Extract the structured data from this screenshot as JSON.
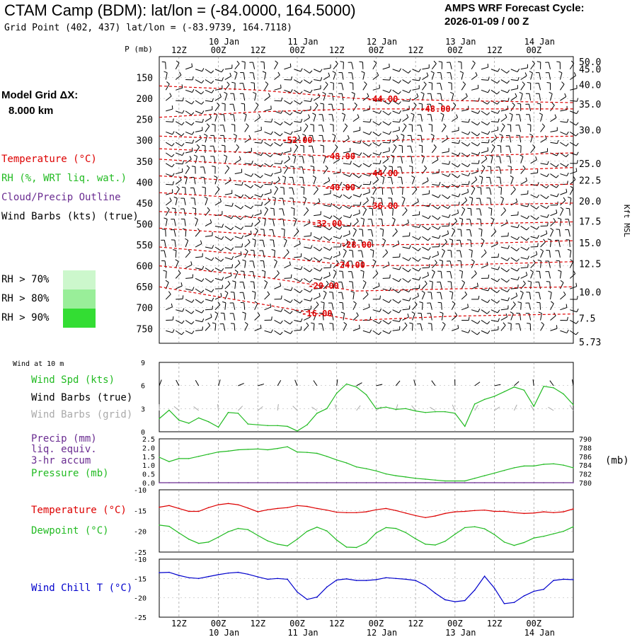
{
  "header": {
    "title": "CTAM Camp (BDM):  lat/lon = (-84.0000, 164.5000)",
    "grid_point": "Grid Point (402, 437) lat/lon = (-83.9739, 164.7118)",
    "cycle_label": "AMPS WRF Forecast Cycle:",
    "cycle_value": "2026-01-09 / 00  Z"
  },
  "model_grid": {
    "label": "Model Grid ΔX:",
    "value": "8.000 km"
  },
  "legend": {
    "temperature": "Temperature (°C)",
    "rh": "RH (%, WRT liq. wat.)",
    "cloud": "Cloud/Precip Outline",
    "wind_barbs": "Wind Barbs (kts) (true)",
    "rh70": "RH > 70%",
    "rh80": "RH > 80%",
    "rh90": "RH > 90%",
    "rh_colors": [
      "#ccf7cc",
      "#99ee99",
      "#33dd33"
    ]
  },
  "time_axis": {
    "labels_top": [
      "12Z",
      "00Z",
      "12Z",
      "00Z",
      "12Z",
      "00Z",
      "12Z",
      "00Z",
      "12Z",
      "00Z"
    ],
    "dates": [
      "10 Jan",
      "11 Jan",
      "12 Jan",
      "13 Jan",
      "14 Jan"
    ]
  },
  "colors": {
    "temp": "#dd0000",
    "green": "#22bb22",
    "blue": "#0000cc",
    "gray": "#aaaaaa",
    "purple": "#6a2c91"
  },
  "chart_data": [
    {
      "type": "line",
      "name": "upper-air cross-section",
      "y_label": "P (mb)",
      "y_right_label": "Kft MSL",
      "pressure_ticks": [
        150,
        200,
        250,
        300,
        350,
        400,
        450,
        500,
        550,
        600,
        650,
        700,
        750
      ],
      "kft_ticks": [
        "50.0",
        "45.0",
        "40.0",
        "35.0",
        "30.0",
        "25.0",
        "22.5",
        "20.0",
        "17.5",
        "15.0",
        "12.5",
        "10.0",
        "7.5",
        "5.73"
      ],
      "kft_pressures": [
        112,
        130,
        167,
        213,
        275,
        355,
        395,
        445,
        493,
        545,
        595,
        662,
        725,
        782
      ],
      "ylim": [
        100,
        785
      ],
      "forecast_hours": [
        0,
        126
      ],
      "isotherms": [
        {
          "label": "-44.00",
          "label_hour": 68,
          "points": [
            [
              0,
              170
            ],
            [
              30,
              180
            ],
            [
              60,
              200
            ],
            [
              90,
              205
            ],
            [
              126,
              210
            ]
          ]
        },
        {
          "label": "-48.00",
          "label_hour": 84,
          "points": [
            [
              0,
              245
            ],
            [
              30,
              232
            ],
            [
              60,
              225
            ],
            [
              90,
              225
            ],
            [
              126,
              225
            ]
          ]
        },
        {
          "label": "-52.00",
          "label_hour": 42,
          "points": [
            [
              0,
              290
            ],
            [
              30,
              298
            ],
            [
              60,
              303
            ],
            [
              90,
              295
            ],
            [
              126,
              290
            ]
          ]
        },
        {
          "label": "-48.00",
          "label_hour": 55,
          "points": [
            [
              0,
              320
            ],
            [
              30,
              330
            ],
            [
              60,
              340
            ],
            [
              90,
              338
            ],
            [
              126,
              330
            ]
          ]
        },
        {
          "label": "-44.00",
          "label_hour": 68,
          "points": [
            [
              0,
              345
            ],
            [
              30,
              360
            ],
            [
              60,
              380
            ],
            [
              90,
              375
            ],
            [
              126,
              365
            ]
          ]
        },
        {
          "label": "-40.00",
          "label_hour": 55,
          "points": [
            [
              0,
              385
            ],
            [
              30,
              400
            ],
            [
              60,
              415
            ],
            [
              90,
              410
            ],
            [
              126,
              405
            ]
          ]
        },
        {
          "label": "-36.00",
          "label_hour": 68,
          "points": [
            [
              0,
              425
            ],
            [
              30,
              440
            ],
            [
              60,
              458
            ],
            [
              90,
              455
            ],
            [
              126,
              450
            ]
          ]
        },
        {
          "label": "-32.00",
          "label_hour": 51,
          "points": [
            [
              0,
              470
            ],
            [
              30,
              485
            ],
            [
              60,
              505
            ],
            [
              90,
              500
            ],
            [
              126,
              495
            ]
          ]
        },
        {
          "label": "-28.00",
          "label_hour": 60,
          "points": [
            [
              0,
              510
            ],
            [
              30,
              525
            ],
            [
              60,
              550
            ],
            [
              90,
              548
            ],
            [
              126,
              540
            ]
          ]
        },
        {
          "label": "-24.00",
          "label_hour": 58,
          "points": [
            [
              0,
              555
            ],
            [
              30,
              575
            ],
            [
              60,
              600
            ],
            [
              90,
              598
            ],
            [
              126,
              590
            ]
          ]
        },
        {
          "label": "-20.00",
          "label_hour": 50,
          "points": [
            [
              0,
              600
            ],
            [
              30,
              625
            ],
            [
              60,
              660
            ],
            [
              90,
              655
            ],
            [
              126,
              650
            ]
          ]
        },
        {
          "label": "-16.00",
          "label_hour": 48,
          "points": [
            [
              0,
              650
            ],
            [
              30,
              690
            ],
            [
              60,
              730
            ],
            [
              90,
              720
            ],
            [
              126,
              715
            ]
          ]
        }
      ]
    },
    {
      "type": "line",
      "name": "wind at 10 m",
      "title": "Wind at 10 m",
      "series_label": "Wind Spd (kts)",
      "barbs_true_label": "Wind Barbs (true)",
      "barbs_grid_label": "Wind Barbs (grid)",
      "ylim": [
        0,
        9
      ],
      "y_ticks": [
        0,
        3,
        6,
        9
      ],
      "hours": [
        0,
        3,
        6,
        9,
        12,
        15,
        18,
        21,
        24,
        27,
        30,
        33,
        36,
        39,
        42,
        45,
        48,
        51,
        54,
        57,
        60,
        63,
        66,
        69,
        72,
        75,
        78,
        81,
        84,
        87,
        90,
        93,
        96,
        99,
        102,
        105,
        108,
        111,
        114,
        117,
        120,
        123,
        126
      ],
      "values": [
        1.7,
        2.8,
        1.5,
        1.1,
        1.8,
        1.3,
        0.6,
        2.5,
        2.4,
        1.0,
        0.9,
        0.8,
        0.8,
        0.7,
        0.1,
        0.9,
        2.4,
        3.0,
        5.0,
        6.2,
        5.8,
        4.8,
        3.0,
        3.2,
        2.9,
        3.0,
        2.7,
        2.5,
        2.6,
        2.6,
        2.4,
        0.7,
        3.6,
        4.2,
        4.6,
        5.2,
        5.8,
        5.4,
        3.3,
        5.9,
        5.7,
        4.9,
        3.5
      ]
    },
    {
      "type": "line",
      "name": "precip and pressure",
      "precip_label": "Precip (mm)",
      "precip_sub1": "liq. equiv.",
      "precip_sub2": "3-hr accum",
      "pressure_label": "Pressure (mb)",
      "pressure_unit": "(mb)",
      "ylim_left": [
        0,
        2.5
      ],
      "left_ticks": [
        "0.0",
        "0.5",
        "1.0",
        "1.5",
        "2.0",
        "2.5"
      ],
      "ylim_right": [
        780,
        790
      ],
      "right_ticks": [
        "780",
        "782",
        "784",
        "786",
        "788",
        "790"
      ],
      "hours": [
        0,
        3,
        6,
        9,
        12,
        15,
        18,
        21,
        24,
        27,
        30,
        33,
        36,
        39,
        42,
        45,
        48,
        51,
        54,
        57,
        60,
        63,
        66,
        69,
        72,
        75,
        78,
        81,
        84,
        87,
        90,
        93,
        96,
        99,
        102,
        105,
        108,
        111,
        114,
        117,
        120,
        123,
        126
      ],
      "pressure": [
        785.8,
        784.8,
        785.5,
        785.5,
        786.0,
        786.5,
        787.0,
        787.2,
        787.5,
        787.6,
        787.7,
        787.5,
        787.8,
        788.2,
        787.0,
        786.9,
        786.7,
        786.0,
        785.2,
        784.5,
        783.6,
        783.2,
        782.7,
        782.0,
        781.6,
        781.3,
        781.0,
        780.8,
        780.6,
        780.4,
        780.4,
        780.4,
        781.0,
        781.6,
        782.2,
        782.8,
        783.4,
        783.8,
        783.8,
        784.2,
        784.3,
        784.0,
        783.4
      ],
      "precip": [
        0,
        0,
        0,
        0,
        0,
        0,
        0,
        0,
        0,
        0,
        0,
        0,
        0,
        0,
        0,
        0,
        0,
        0,
        0,
        0,
        0,
        0,
        0,
        0,
        0,
        0,
        0,
        0,
        0,
        0,
        0,
        0,
        0,
        0,
        0,
        0,
        0,
        0,
        0,
        0,
        0,
        0,
        0
      ]
    },
    {
      "type": "line",
      "name": "temperature and dewpoint",
      "temp_label": "Temperature (°C)",
      "dew_label": "Dewpoint (°C)",
      "ylim": [
        -25,
        -10
      ],
      "y_ticks": [
        -25,
        -20,
        -15,
        -10
      ],
      "hours": [
        0,
        3,
        6,
        9,
        12,
        15,
        18,
        21,
        24,
        27,
        30,
        33,
        36,
        39,
        42,
        45,
        48,
        51,
        54,
        57,
        60,
        63,
        66,
        69,
        72,
        75,
        78,
        81,
        84,
        87,
        90,
        93,
        96,
        99,
        102,
        105,
        108,
        111,
        114,
        117,
        120,
        123,
        126
      ],
      "temperature": [
        -14.2,
        -13.8,
        -14.5,
        -15.2,
        -15.2,
        -14.3,
        -13.6,
        -13.3,
        -13.6,
        -14.4,
        -15.3,
        -14.8,
        -14.5,
        -14.3,
        -13.8,
        -14.0,
        -14.5,
        -14.9,
        -15.4,
        -15.5,
        -15.5,
        -15.3,
        -14.8,
        -14.5,
        -15.0,
        -15.6,
        -16.2,
        -16.7,
        -16.3,
        -15.7,
        -15.3,
        -15.2,
        -15.0,
        -14.9,
        -15.2,
        -15.2,
        -15.5,
        -15.7,
        -15.6,
        -15.3,
        -15.5,
        -15.3,
        -14.6
      ],
      "dewpoint": [
        -18.5,
        -18.8,
        -20.4,
        -21.9,
        -22.9,
        -22.6,
        -21.4,
        -20.1,
        -19.3,
        -19.6,
        -21.0,
        -22.3,
        -23.1,
        -23.5,
        -21.9,
        -20.0,
        -19.0,
        -19.9,
        -22.1,
        -23.8,
        -23.9,
        -22.8,
        -20.4,
        -19.1,
        -19.3,
        -20.3,
        -21.8,
        -23.1,
        -23.3,
        -22.4,
        -20.7,
        -19.1,
        -18.9,
        -19.4,
        -20.8,
        -22.6,
        -23.4,
        -22.7,
        -21.6,
        -21.2,
        -20.6,
        -20.0,
        -18.9
      ]
    },
    {
      "type": "line",
      "name": "wind chill",
      "label": "Wind Chill T (°C)",
      "ylim": [
        -25,
        -10
      ],
      "y_ticks": [
        -25,
        -20,
        -15,
        -10
      ],
      "hours": [
        0,
        3,
        6,
        9,
        12,
        15,
        18,
        21,
        24,
        27,
        30,
        33,
        36,
        39,
        42,
        45,
        48,
        51,
        54,
        57,
        60,
        63,
        66,
        69,
        72,
        75,
        78,
        81,
        84,
        87,
        90,
        93,
        96,
        99,
        102,
        105,
        108,
        111,
        114,
        117,
        120,
        123,
        126
      ],
      "values": [
        -13.5,
        -13.4,
        -14.2,
        -14.8,
        -15.0,
        -14.5,
        -14.0,
        -13.6,
        -13.4,
        -13.9,
        -14.6,
        -15.2,
        -15.0,
        -15.2,
        -18.5,
        -20.4,
        -19.8,
        -17.2,
        -15.4,
        -15.1,
        -15.5,
        -15.5,
        -15.3,
        -14.8,
        -15.0,
        -15.2,
        -15.5,
        -16.8,
        -18.8,
        -20.5,
        -21.0,
        -20.7,
        -18.0,
        -14.4,
        -17.5,
        -21.5,
        -21.2,
        -19.5,
        -18.3,
        -17.8,
        -15.5,
        -15.2,
        -15.3
      ]
    }
  ]
}
